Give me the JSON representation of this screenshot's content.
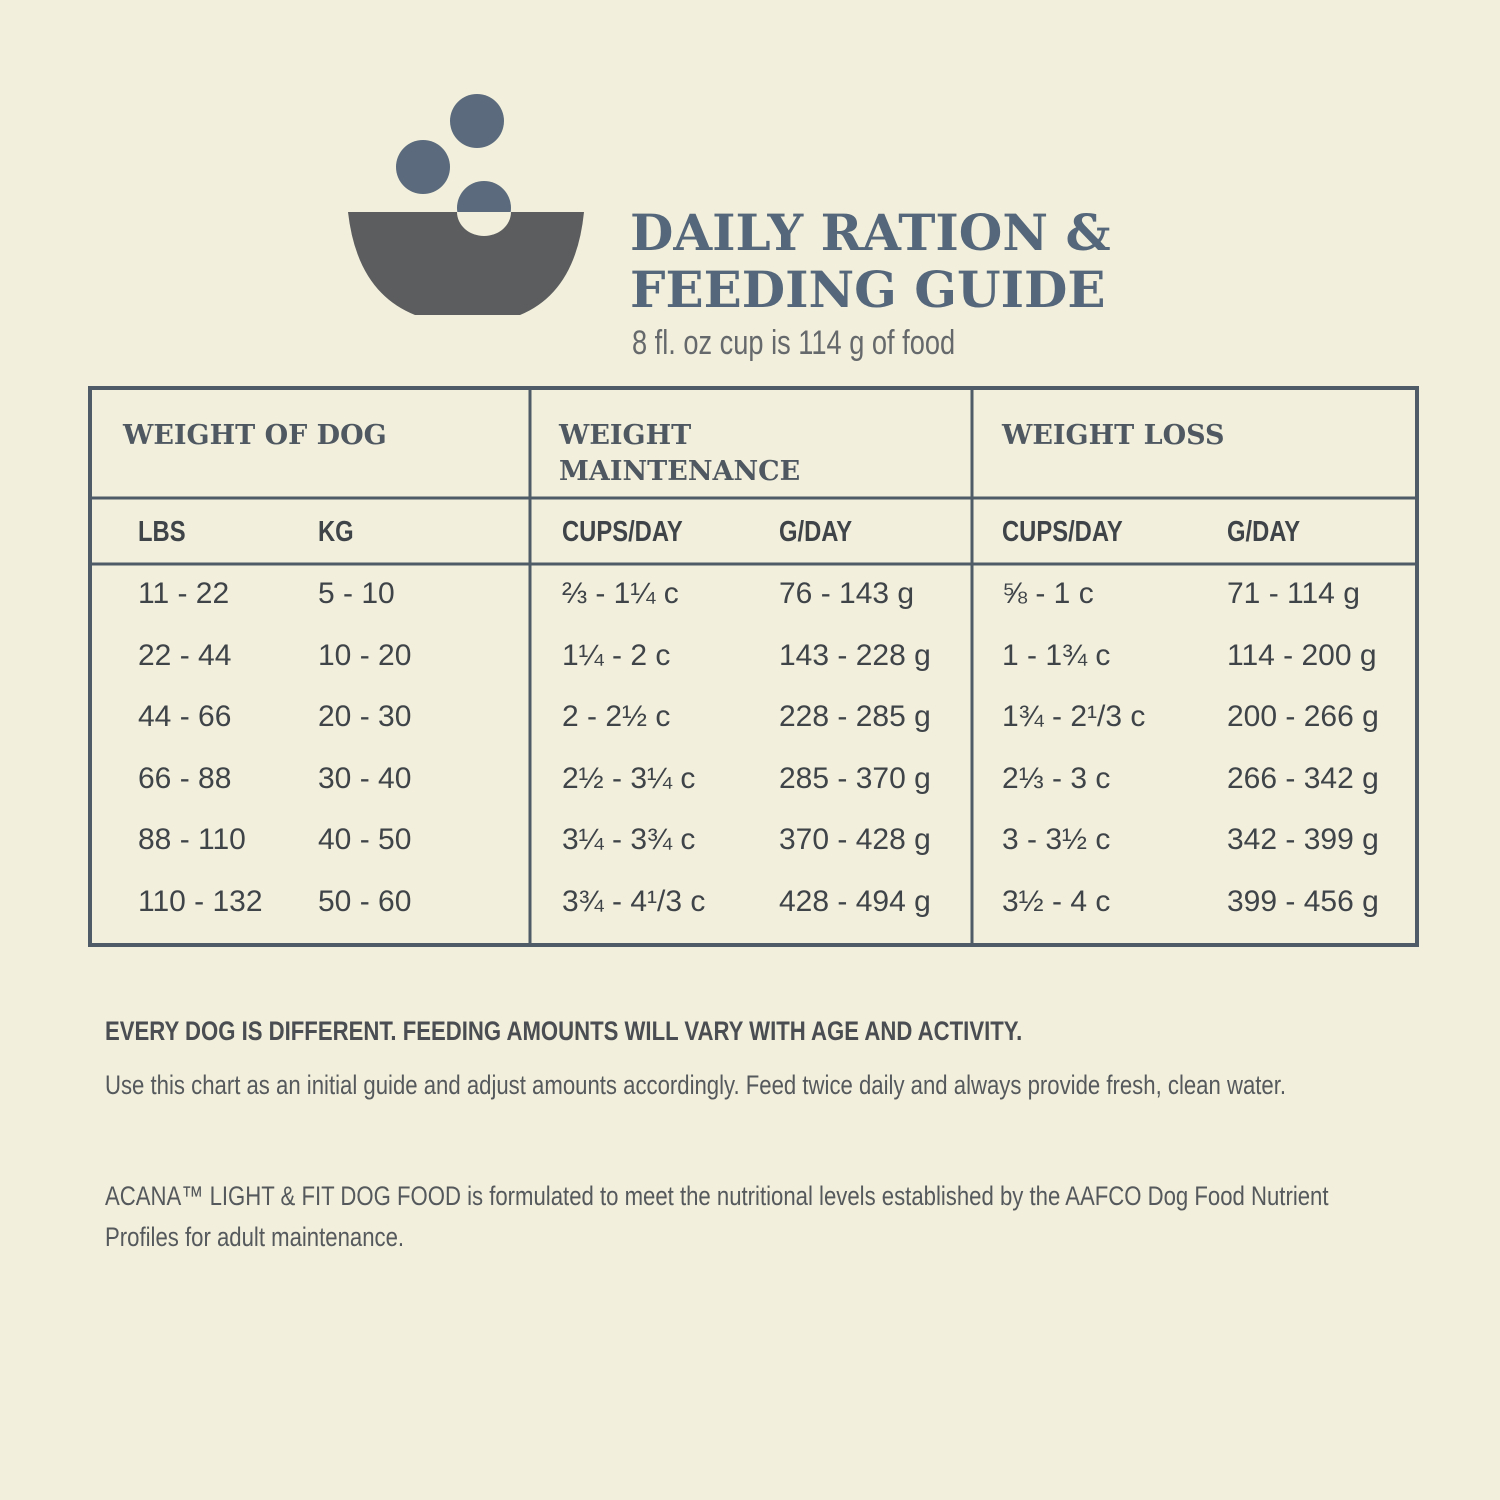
{
  "header": {
    "title_lines": [
      "DAILY RATION &",
      "FEEDING GUIDE"
    ],
    "subtitle": "8 fl. oz cup is 114 g of food"
  },
  "table": {
    "group_headers": [
      "WEIGHT OF DOG",
      "WEIGHT MAINTENANCE",
      "WEIGHT LOSS"
    ],
    "columns": [
      "LBS",
      "KG",
      "CUPS/DAY",
      "G/DAY",
      "CUPS/DAY",
      "G/DAY"
    ],
    "rows": [
      [
        "11 - 22",
        "5 - 10",
        "⅔ - 1¼ c",
        "76 - 143 g",
        "⅝ - 1 c",
        "71 - 114 g"
      ],
      [
        "22 - 44",
        "10 - 20",
        "1¼ - 2 c",
        "143 - 228 g",
        "1 - 1¾ c",
        "114 - 200 g"
      ],
      [
        "44 - 66",
        "20 - 30",
        "2 - 2½ c",
        "228 - 285 g",
        "1¾ - 2¹/3 c",
        "200 - 266 g"
      ],
      [
        "66 - 88",
        "30 - 40",
        "2½ - 3¼ c",
        "285 - 370 g",
        "2⅓ - 3 c",
        "266 - 342 g"
      ],
      [
        "88 - 110",
        "40 - 50",
        "3¼ - 3¾ c",
        "370 - 428 g",
        "3 - 3½ c",
        "342 - 399 g"
      ],
      [
        "110 - 132",
        "50 - 60",
        "3¾ - 4¹/3 c",
        "428 - 494 g",
        "3½ - 4 c",
        "399 - 456 g"
      ]
    ]
  },
  "notes": {
    "heading": "EVERY DOG IS DIFFERENT. FEEDING AMOUNTS WILL VARY WITH AGE AND ACTIVITY.",
    "body": "Use this chart as an initial guide and adjust amounts accordingly. Feed twice daily and always provide fresh, clean water.",
    "disclaimer": "ACANA™ LIGHT & FIT DOG FOOD is formulated to meet the nutritional levels established by the AAFCO Dog Food Nutrient Profiles for adult maintenance."
  }
}
